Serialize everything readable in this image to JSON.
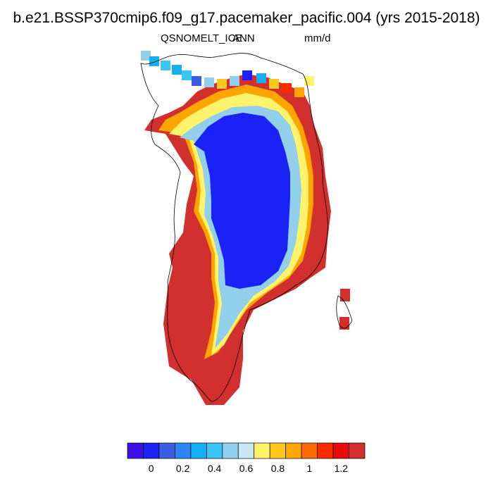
{
  "title": "b.e21.BSSP370cmip6.f09_g17.pacemaker_pacific.004 (yrs 2015-2018)",
  "subtitle": {
    "variable": "QSNOMELT_ICE",
    "season": "ANN",
    "units": "mm/d"
  },
  "chart_data": {
    "type": "heatmap",
    "map_region": "Greenland",
    "variable": "QSNOMELT_ICE",
    "season": "ANN",
    "units": "mm/d",
    "years": "2015-2018",
    "colorbar": {
      "colors": [
        "#3d10e8",
        "#1a22f5",
        "#3b5ee0",
        "#2b87f4",
        "#15aef0",
        "#3cc4f2",
        "#92cfea",
        "#c9e6f3",
        "#fff36b",
        "#ffc81c",
        "#ffa500",
        "#ff6a00",
        "#ff2a00",
        "#e70b0b",
        "#d22f2f"
      ],
      "tick_labels": [
        "0",
        "0.2",
        "0.4",
        "0.6",
        "0.8",
        "1",
        "1.2"
      ],
      "tick_values": [
        0,
        0.2,
        0.4,
        0.6,
        0.8,
        1.0,
        1.2
      ]
    },
    "field_description": "Interior ice sheet ~0 (blue); margins 0.6-1.0 (yellow/orange); coastal periphery >1.3 (red)"
  }
}
